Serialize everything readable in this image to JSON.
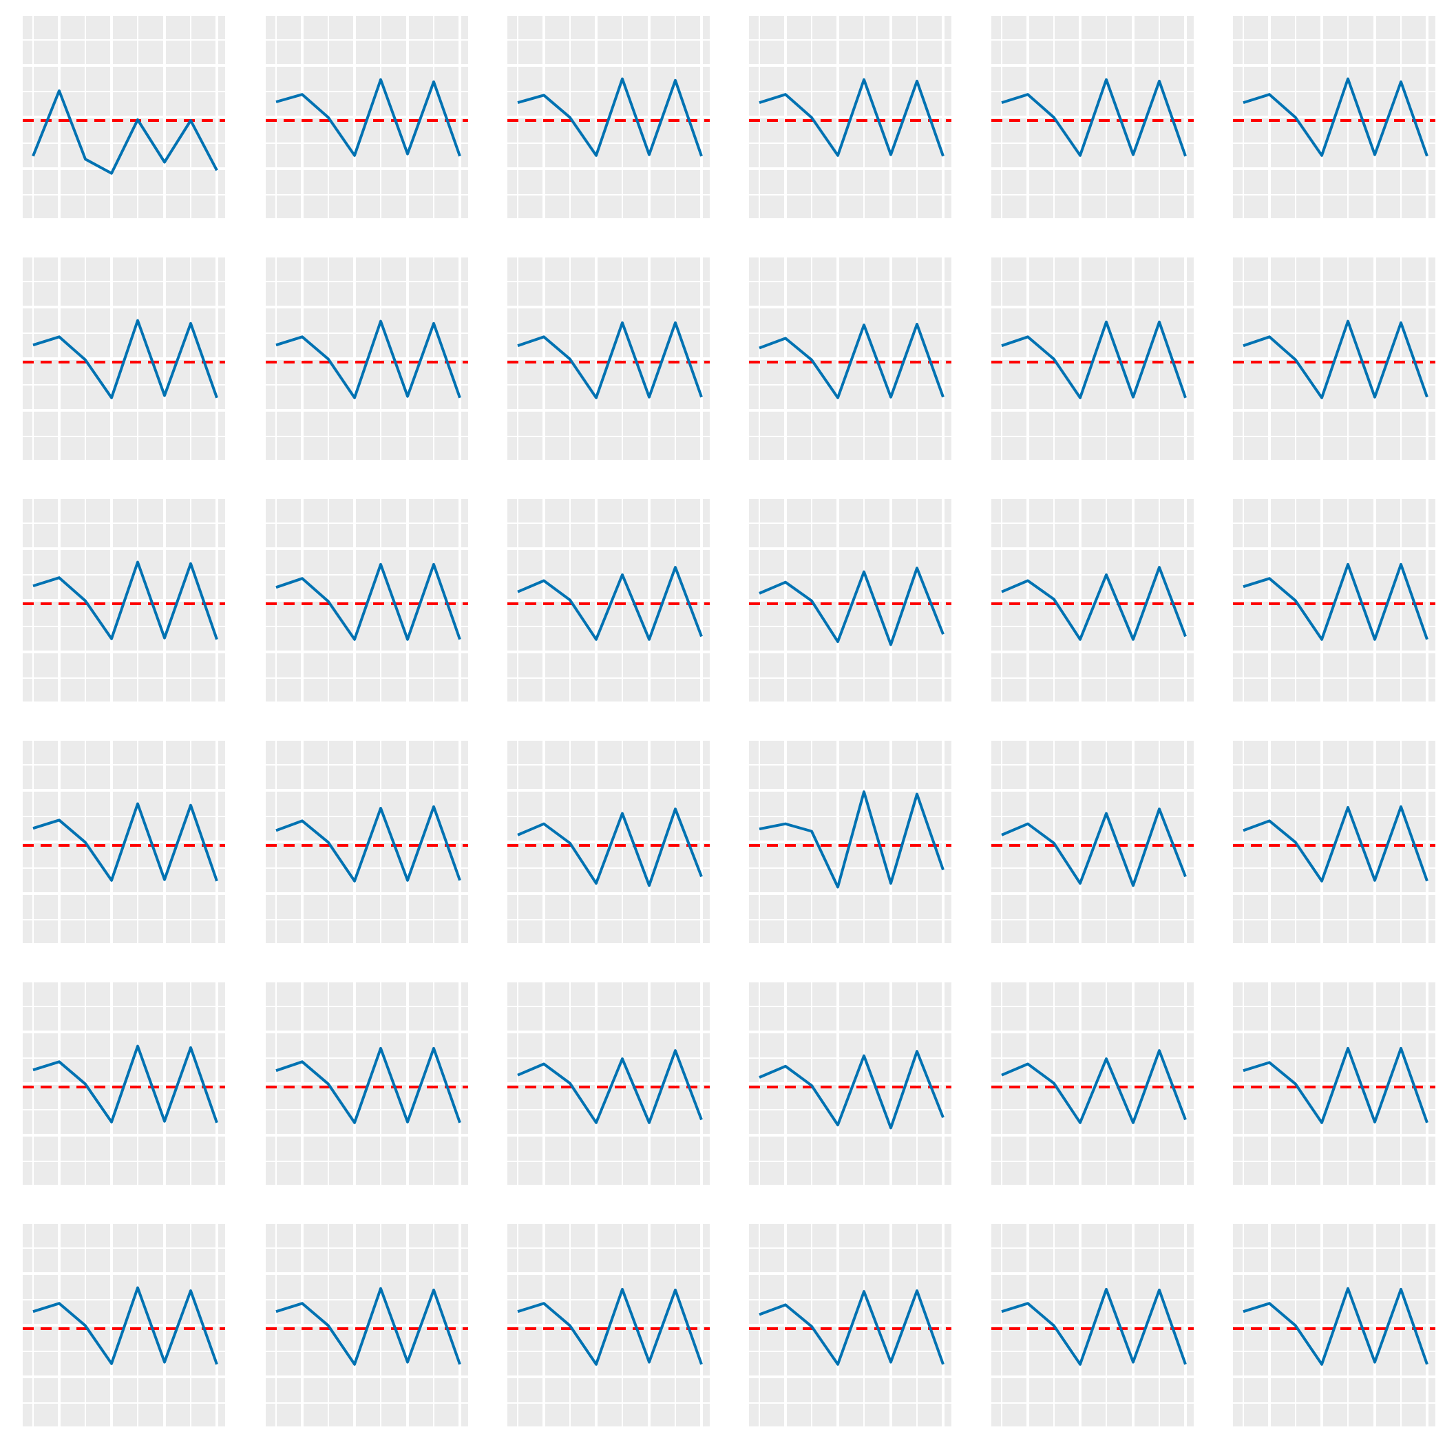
{
  "colors": {
    "panel_background": "#ebebeb",
    "gridline": "#ffffff",
    "series": "#0072b2",
    "reference_line": "#ff0000",
    "page_background": "#ffffff"
  },
  "layout": {
    "rows": 6,
    "cols": 6
  },
  "chart_data": {
    "type": "line",
    "facet_grid": "6x6",
    "x": [
      1,
      2,
      3,
      4,
      5,
      6,
      7,
      8
    ],
    "ylim": [
      -1,
      1
    ],
    "reference_line": {
      "y": 0,
      "style": "dashed"
    },
    "grid": true,
    "title": "",
    "xlabel": "",
    "ylabel": "",
    "panels": [
      {
        "values": [
          -0.48,
          0.4,
          -0.52,
          -0.71,
          0.01,
          -0.56,
          0.0,
          -0.67
        ]
      },
      {
        "values": [
          0.25,
          0.35,
          0.04,
          -0.47,
          0.55,
          -0.45,
          0.52,
          -0.48
        ]
      },
      {
        "values": [
          0.24,
          0.34,
          0.04,
          -0.47,
          0.56,
          -0.46,
          0.54,
          -0.48
        ]
      },
      {
        "values": [
          0.24,
          0.35,
          0.04,
          -0.47,
          0.55,
          -0.46,
          0.53,
          -0.48
        ]
      },
      {
        "values": [
          0.24,
          0.35,
          0.04,
          -0.47,
          0.55,
          -0.46,
          0.53,
          -0.48
        ]
      },
      {
        "values": [
          0.24,
          0.35,
          0.04,
          -0.47,
          0.56,
          -0.46,
          0.52,
          -0.48
        ]
      },
      {
        "values": [
          0.23,
          0.34,
          0.03,
          -0.48,
          0.56,
          -0.45,
          0.52,
          -0.48
        ]
      },
      {
        "values": [
          0.23,
          0.34,
          0.04,
          -0.48,
          0.55,
          -0.46,
          0.52,
          -0.48
        ]
      },
      {
        "values": [
          0.22,
          0.34,
          0.04,
          -0.48,
          0.53,
          -0.47,
          0.53,
          -0.47
        ]
      },
      {
        "values": [
          0.19,
          0.32,
          0.03,
          -0.48,
          0.5,
          -0.47,
          0.51,
          -0.47
        ]
      },
      {
        "values": [
          0.22,
          0.34,
          0.04,
          -0.48,
          0.54,
          -0.47,
          0.54,
          -0.48
        ]
      },
      {
        "values": [
          0.22,
          0.34,
          0.03,
          -0.48,
          0.55,
          -0.47,
          0.53,
          -0.47
        ]
      },
      {
        "values": [
          0.24,
          0.35,
          0.04,
          -0.47,
          0.56,
          -0.46,
          0.54,
          -0.48
        ]
      },
      {
        "values": [
          0.22,
          0.34,
          0.03,
          -0.48,
          0.53,
          -0.48,
          0.53,
          -0.48
        ]
      },
      {
        "values": [
          0.16,
          0.31,
          0.05,
          -0.48,
          0.39,
          -0.48,
          0.49,
          -0.44
        ]
      },
      {
        "values": [
          0.14,
          0.29,
          0.04,
          -0.51,
          0.43,
          -0.55,
          0.48,
          -0.41
        ]
      },
      {
        "values": [
          0.16,
          0.31,
          0.06,
          -0.48,
          0.39,
          -0.48,
          0.49,
          -0.44
        ]
      },
      {
        "values": [
          0.23,
          0.34,
          0.04,
          -0.48,
          0.53,
          -0.48,
          0.53,
          -0.48
        ]
      },
      {
        "values": [
          0.23,
          0.34,
          0.04,
          -0.47,
          0.56,
          -0.46,
          0.54,
          -0.48
        ]
      },
      {
        "values": [
          0.2,
          0.33,
          0.04,
          -0.48,
          0.5,
          -0.47,
          0.52,
          -0.47
        ]
      },
      {
        "values": [
          0.14,
          0.29,
          0.03,
          -0.51,
          0.43,
          -0.54,
          0.49,
          -0.42
        ]
      },
      {
        "values": [
          0.22,
          0.29,
          0.19,
          -0.56,
          0.72,
          -0.51,
          0.69,
          -0.33
        ]
      },
      {
        "values": [
          0.14,
          0.29,
          0.03,
          -0.51,
          0.43,
          -0.54,
          0.49,
          -0.42
        ]
      },
      {
        "values": [
          0.2,
          0.33,
          0.04,
          -0.48,
          0.51,
          -0.47,
          0.52,
          -0.48
        ]
      },
      {
        "values": [
          0.23,
          0.34,
          0.04,
          -0.47,
          0.55,
          -0.46,
          0.53,
          -0.48
        ]
      },
      {
        "values": [
          0.22,
          0.34,
          0.04,
          -0.48,
          0.52,
          -0.47,
          0.52,
          -0.48
        ]
      },
      {
        "values": [
          0.16,
          0.31,
          0.05,
          -0.48,
          0.38,
          -0.48,
          0.49,
          -0.44
        ]
      },
      {
        "values": [
          0.13,
          0.28,
          0.02,
          -0.51,
          0.42,
          -0.55,
          0.48,
          -0.41
        ]
      },
      {
        "values": [
          0.16,
          0.31,
          0.05,
          -0.48,
          0.38,
          -0.48,
          0.49,
          -0.44
        ]
      },
      {
        "values": [
          0.22,
          0.33,
          0.04,
          -0.48,
          0.52,
          -0.47,
          0.52,
          -0.48
        ]
      },
      {
        "values": [
          0.23,
          0.34,
          0.04,
          -0.47,
          0.55,
          -0.45,
          0.51,
          -0.48
        ]
      },
      {
        "values": [
          0.23,
          0.34,
          0.04,
          -0.48,
          0.54,
          -0.45,
          0.52,
          -0.48
        ]
      },
      {
        "values": [
          0.23,
          0.34,
          0.04,
          -0.48,
          0.53,
          -0.45,
          0.52,
          -0.48
        ]
      },
      {
        "values": [
          0.19,
          0.32,
          0.03,
          -0.48,
          0.5,
          -0.45,
          0.51,
          -0.48
        ]
      },
      {
        "values": [
          0.23,
          0.34,
          0.04,
          -0.48,
          0.53,
          -0.45,
          0.52,
          -0.48
        ]
      },
      {
        "values": [
          0.23,
          0.34,
          0.04,
          -0.48,
          0.54,
          -0.45,
          0.53,
          -0.48
        ]
      }
    ]
  }
}
